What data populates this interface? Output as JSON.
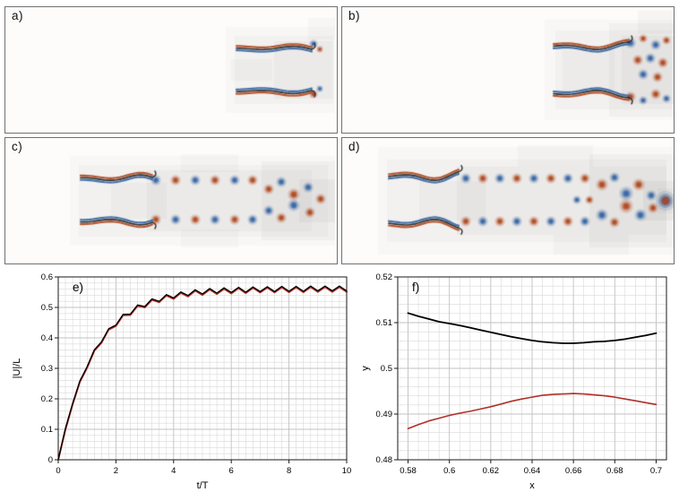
{
  "figure": {
    "panels": [
      {
        "label": "a)"
      },
      {
        "label": "b)"
      },
      {
        "label": "c)"
      },
      {
        "label": "d)"
      }
    ],
    "colors": {
      "vorticity_positive": "#b0461e",
      "vorticity_negative": "#3465a4",
      "plate": "#2f2f2f",
      "grid_block": "#6e6e6e",
      "panel_background": "#fdfcfa",
      "panel_border": "#707070",
      "series_black": "#000000",
      "series_red": "#b03028",
      "grid_minor": "#d9d9d9",
      "grid_major": "#c2c2c2",
      "axis": "#1a1a1a"
    }
  },
  "chart_data": [
    {
      "type": "line",
      "panel_label": "e)",
      "title": "",
      "xlabel": "t/T",
      "ylabel": "|U|/L",
      "xlim": [
        0,
        10
      ],
      "ylim": [
        0,
        0.6
      ],
      "xticks": [
        0,
        2,
        4,
        6,
        8,
        10
      ],
      "xtick_labels": [
        "0",
        "2",
        "4",
        "6",
        "8",
        "10"
      ],
      "yticks": [
        0,
        0.1,
        0.2,
        0.3,
        0.4,
        0.5,
        0.6
      ],
      "ytick_labels": [
        "0",
        "0.1",
        "0.2",
        "0.3",
        "0.4",
        "0.5",
        "0.6"
      ],
      "minor_grid": {
        "x_step": 0.25,
        "y_step": 0.02
      },
      "grid": true,
      "legend": "none",
      "x": [
        0,
        0.25,
        0.5,
        0.75,
        1,
        1.25,
        1.5,
        1.75,
        2,
        2.25,
        2.5,
        2.75,
        3,
        3.25,
        3.5,
        3.75,
        4,
        4.25,
        4.5,
        4.75,
        5,
        5.25,
        5.5,
        5.75,
        6,
        6.25,
        6.5,
        6.75,
        7,
        7.25,
        7.5,
        7.75,
        8,
        8.25,
        8.5,
        8.75,
        9,
        9.25,
        9.5,
        9.75,
        10
      ],
      "series": [
        {
          "name": "red-curve",
          "color": "#b03028",
          "width": 2.0,
          "y": [
            0,
            0.099,
            0.182,
            0.256,
            0.302,
            0.358,
            0.384,
            0.427,
            0.439,
            0.474,
            0.475,
            0.505,
            0.5,
            0.525,
            0.517,
            0.539,
            0.528,
            0.548,
            0.536,
            0.555,
            0.541,
            0.559,
            0.544,
            0.561,
            0.546,
            0.563,
            0.547,
            0.564,
            0.549,
            0.565,
            0.549,
            0.566,
            0.55,
            0.566,
            0.55,
            0.567,
            0.551,
            0.567,
            0.551,
            0.567,
            0.551
          ]
        },
        {
          "name": "black-curve",
          "color": "#000000",
          "width": 1.3,
          "y": [
            0,
            0.102,
            0.185,
            0.259,
            0.305,
            0.361,
            0.387,
            0.43,
            0.442,
            0.477,
            0.478,
            0.508,
            0.503,
            0.528,
            0.52,
            0.542,
            0.531,
            0.551,
            0.539,
            0.558,
            0.544,
            0.562,
            0.547,
            0.564,
            0.549,
            0.566,
            0.55,
            0.567,
            0.552,
            0.568,
            0.552,
            0.569,
            0.553,
            0.569,
            0.553,
            0.57,
            0.554,
            0.57,
            0.554,
            0.57,
            0.554
          ]
        }
      ]
    },
    {
      "type": "line",
      "panel_label": "f)",
      "title": "",
      "xlabel": "x",
      "ylabel": "y",
      "xlim": [
        0.575,
        0.705
      ],
      "ylim": [
        0.48,
        0.52
      ],
      "xticks": [
        0.58,
        0.6,
        0.62,
        0.64,
        0.66,
        0.68,
        0.7
      ],
      "xtick_labels": [
        "0.58",
        "0.6",
        "0.62",
        "0.64",
        "0.66",
        "0.68",
        "0.7"
      ],
      "yticks": [
        0.48,
        0.49,
        0.5,
        0.51,
        0.52
      ],
      "ytick_labels": [
        "0.48",
        "0.49",
        "0.5",
        "0.51",
        "0.52"
      ],
      "minor_grid": {
        "x_step": 0.005,
        "y_step": 0.002
      },
      "grid": true,
      "legend": "none",
      "x": [
        0.58,
        0.585,
        0.59,
        0.595,
        0.6,
        0.605,
        0.61,
        0.615,
        0.62,
        0.625,
        0.63,
        0.635,
        0.64,
        0.645,
        0.65,
        0.655,
        0.66,
        0.665,
        0.67,
        0.675,
        0.68,
        0.685,
        0.69,
        0.695,
        0.7
      ],
      "series": [
        {
          "name": "black-curve",
          "color": "#000000",
          "width": 1.8,
          "y": [
            0.5121,
            0.5114,
            0.5108,
            0.5102,
            0.5098,
            0.5094,
            0.5089,
            0.5084,
            0.5079,
            0.5074,
            0.5069,
            0.5065,
            0.5061,
            0.5058,
            0.5056,
            0.5055,
            0.5055,
            0.5056,
            0.5058,
            0.5059,
            0.5061,
            0.5064,
            0.5068,
            0.5072,
            0.5077
          ]
        },
        {
          "name": "red-curve",
          "color": "#b03028",
          "width": 1.6,
          "y": [
            0.4868,
            0.4877,
            0.4885,
            0.4891,
            0.4897,
            0.4902,
            0.4906,
            0.4911,
            0.4916,
            0.4922,
            0.4928,
            0.4933,
            0.4937,
            0.4941,
            0.4943,
            0.4944,
            0.4945,
            0.4944,
            0.4942,
            0.494,
            0.4937,
            0.4933,
            0.4929,
            0.4925,
            0.4921
          ]
        }
      ]
    }
  ]
}
